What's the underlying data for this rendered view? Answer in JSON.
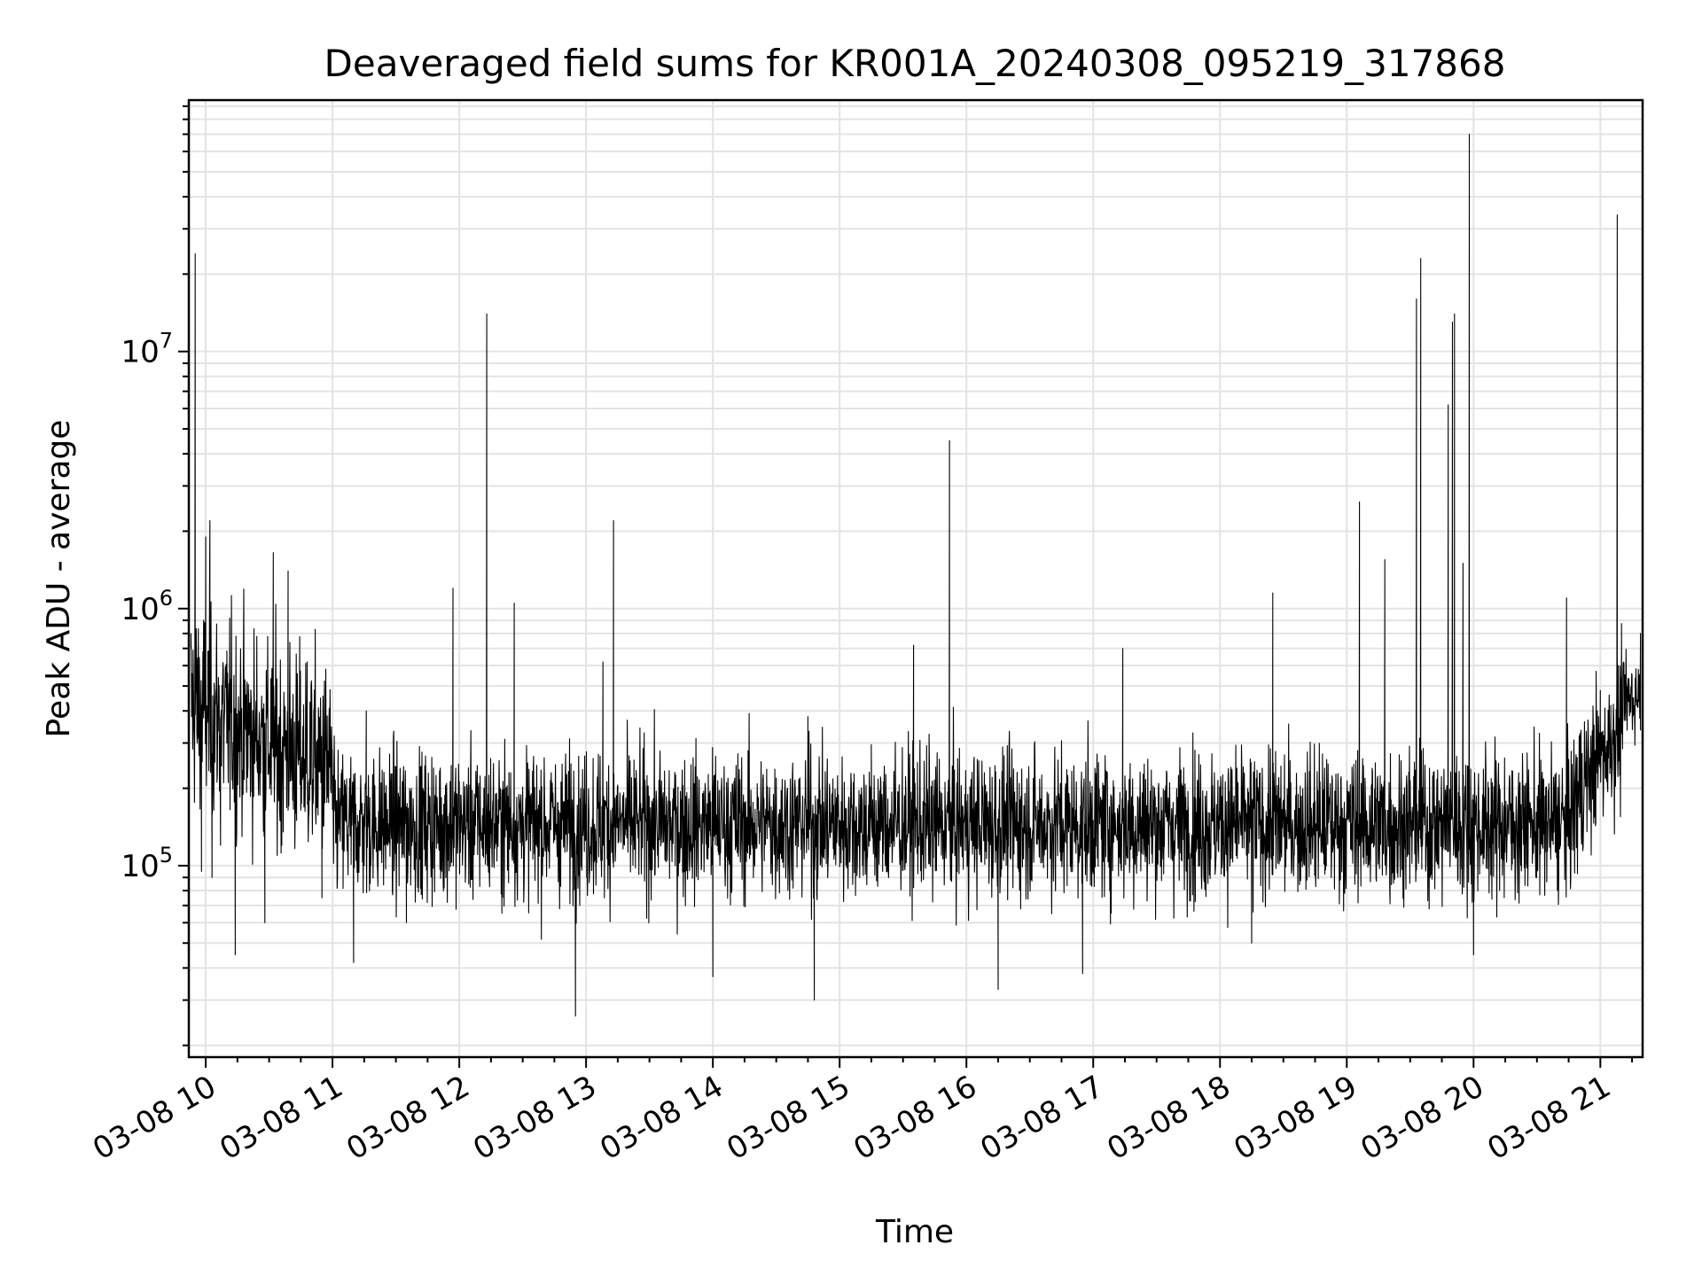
{
  "chart_data": {
    "type": "line",
    "title": "Deaveraged field sums for KR001A_20240308_095219_317868",
    "xlabel": "Time",
    "ylabel": "Peak ADU - average",
    "y_scale": "log",
    "grid": true,
    "line_color": "#000000",
    "x_ticks": [
      "03-08 10",
      "03-08 11",
      "03-08 12",
      "03-08 13",
      "03-08 14",
      "03-08 15",
      "03-08 16",
      "03-08 17",
      "03-08 18",
      "03-08 19",
      "03-08 20",
      "03-08 21"
    ],
    "y_ticks": [
      {
        "base": "10",
        "exp": "5",
        "value": 100000
      },
      {
        "base": "10",
        "exp": "6",
        "value": 1000000
      },
      {
        "base": "10",
        "exp": "7",
        "value": 10000000
      }
    ],
    "xlim": [
      "2024-03-08 09:52",
      "2024-03-08 21:20"
    ],
    "ylim": [
      18000,
      95000000
    ],
    "series": [
      {
        "points": [
          [
            "2024-03-08 09:53",
            700000
          ],
          [
            "2024-03-08 09:54",
            350000
          ],
          [
            "2024-03-08 09:55",
            24000000
          ],
          [
            "2024-03-08 09:56",
            300000
          ],
          [
            "2024-03-08 09:57",
            600000
          ],
          [
            "2024-03-08 09:58",
            95000
          ],
          [
            "2024-03-08 09:59",
            900000
          ],
          [
            "2024-03-08 10:00",
            1900000
          ],
          [
            "2024-03-08 10:01",
            400000
          ],
          [
            "2024-03-08 10:02",
            2200000
          ],
          [
            "2024-03-08 10:03",
            90000
          ],
          [
            "2024-03-08 10:05",
            500000
          ],
          [
            "2024-03-08 10:07",
            120000
          ],
          [
            "2024-03-08 10:10",
            300000
          ],
          [
            "2024-03-08 10:14",
            45000
          ],
          [
            "2024-03-08 10:20",
            250000
          ],
          [
            "2024-03-08 10:28",
            60000
          ],
          [
            "2024-03-08 10:32",
            1650000
          ],
          [
            "2024-03-08 10:36",
            120000
          ],
          [
            "2024-03-08 10:39",
            1400000
          ],
          [
            "2024-03-08 10:43",
            150000
          ],
          [
            "2024-03-08 10:48",
            620000
          ],
          [
            "2024-03-08 10:55",
            75000
          ],
          [
            "2024-03-08 11:05",
            180000
          ],
          [
            "2024-03-08 11:10",
            42000
          ],
          [
            "2024-03-08 11:16",
            400000
          ],
          [
            "2024-03-08 11:25",
            130000
          ],
          [
            "2024-03-08 11:35",
            60000
          ],
          [
            "2024-03-08 11:50",
            150000
          ],
          [
            "2024-03-08 11:57",
            1200000
          ],
          [
            "2024-03-08 12:05",
            140000
          ],
          [
            "2024-03-08 12:13",
            14000000
          ],
          [
            "2024-03-08 12:20",
            160000
          ],
          [
            "2024-03-08 12:26",
            1050000
          ],
          [
            "2024-03-08 12:32",
            150000
          ],
          [
            "2024-03-08 12:45",
            130000
          ],
          [
            "2024-03-08 12:55",
            26000
          ],
          [
            "2024-03-08 13:00",
            150000
          ],
          [
            "2024-03-08 13:08",
            620000
          ],
          [
            "2024-03-08 13:13",
            2200000
          ],
          [
            "2024-03-08 13:20",
            160000
          ],
          [
            "2024-03-08 13:30",
            120000
          ],
          [
            "2024-03-08 13:45",
            180000
          ],
          [
            "2024-03-08 14:00",
            37000
          ],
          [
            "2024-03-08 14:15",
            160000
          ],
          [
            "2024-03-08 14:32",
            120000
          ],
          [
            "2024-03-08 14:45",
            380000
          ],
          [
            "2024-03-08 14:48",
            30000
          ],
          [
            "2024-03-08 15:00",
            150000
          ],
          [
            "2024-03-08 15:15",
            170000
          ],
          [
            "2024-03-08 15:35",
            720000
          ],
          [
            "2024-03-08 15:45",
            130000
          ],
          [
            "2024-03-08 15:52",
            4500000
          ],
          [
            "2024-03-08 16:00",
            130000
          ],
          [
            "2024-03-08 16:15",
            33000
          ],
          [
            "2024-03-08 16:30",
            140000
          ],
          [
            "2024-03-08 16:55",
            38000
          ],
          [
            "2024-03-08 17:00",
            150000
          ],
          [
            "2024-03-08 17:14",
            700000
          ],
          [
            "2024-03-08 17:30",
            140000
          ],
          [
            "2024-03-08 17:45",
            130000
          ],
          [
            "2024-03-08 18:00",
            160000
          ],
          [
            "2024-03-08 18:15",
            50000
          ],
          [
            "2024-03-08 18:25",
            1150000
          ],
          [
            "2024-03-08 18:40",
            140000
          ],
          [
            "2024-03-08 18:55",
            160000
          ],
          [
            "2024-03-08 19:06",
            2600000
          ],
          [
            "2024-03-08 19:15",
            140000
          ],
          [
            "2024-03-08 19:18",
            1550000
          ],
          [
            "2024-03-08 19:25",
            120000
          ],
          [
            "2024-03-08 19:33",
            16000000
          ],
          [
            "2024-03-08 19:35",
            23000000
          ],
          [
            "2024-03-08 19:40",
            160000
          ],
          [
            "2024-03-08 19:48",
            6200000
          ],
          [
            "2024-03-08 19:50",
            13000000
          ],
          [
            "2024-03-08 19:51",
            14000000
          ],
          [
            "2024-03-08 19:55",
            1500000
          ],
          [
            "2024-03-08 19:58",
            70000000
          ],
          [
            "2024-03-08 20:00",
            45000
          ],
          [
            "2024-03-08 20:10",
            140000
          ],
          [
            "2024-03-08 20:25",
            120000
          ],
          [
            "2024-03-08 20:40",
            150000
          ],
          [
            "2024-03-08 20:44",
            1100000
          ],
          [
            "2024-03-08 20:50",
            320000
          ],
          [
            "2024-03-08 21:00",
            480000
          ],
          [
            "2024-03-08 21:05",
            420000
          ],
          [
            "2024-03-08 21:08",
            34000000
          ],
          [
            "2024-03-08 21:10",
            700000
          ],
          [
            "2024-03-08 21:15",
            550000
          ],
          [
            "2024-03-08 21:19",
            800000
          ]
        ]
      }
    ]
  }
}
